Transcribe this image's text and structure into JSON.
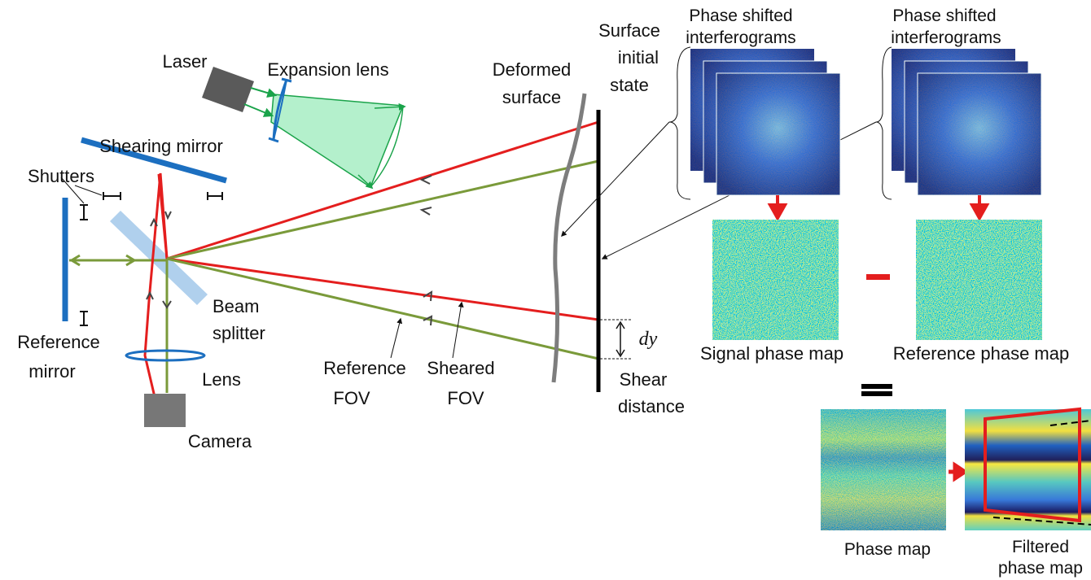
{
  "labels": {
    "laser": "Laser",
    "expansion_lens": "Expansion lens",
    "shearing_mirror": "Shearing mirror",
    "shutters": "Shutters",
    "reference_mirror": [
      "Reference",
      "mirror"
    ],
    "beam_splitter": [
      "Beam",
      "splitter"
    ],
    "lens": "Lens",
    "camera": "Camera",
    "reference_fov": [
      "Reference",
      "FOV"
    ],
    "sheared_fov": [
      "Sheared",
      "FOV"
    ],
    "deformed_surface": [
      "Deformed",
      "surface"
    ],
    "surface_initial_state": [
      "Surface",
      "initial",
      "state"
    ],
    "dy": "dy",
    "shear_distance": [
      "Shear",
      "distance"
    ]
  },
  "images": {
    "interferograms_left": [
      "Phase shifted",
      "interferograms"
    ],
    "interferograms_right": [
      "Phase shifted",
      "interferograms"
    ],
    "signal_phase_map": "Signal phase map",
    "reference_phase_map": "Reference phase map",
    "phase_map": "Phase map",
    "filtered_phase_map": [
      "Filtered",
      "phase map"
    ]
  }
}
